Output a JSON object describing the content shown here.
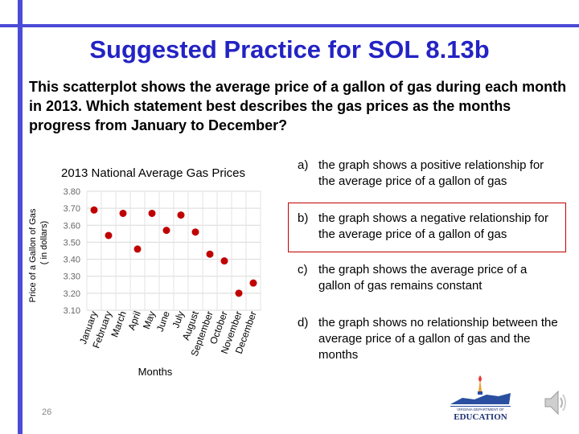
{
  "slide": {
    "title": "Suggested Practice for SOL 8.13b",
    "question": "This scatterplot shows the average price of a gallon of gas during each month in 2013.  Which statement best describes the gas prices as the months progress from January to December?",
    "page_number": "26",
    "logo_text": "VIRGINIA DEPARTMENT OF",
    "logo_title": "EDUCATION",
    "colors": {
      "accent": "#2323c4",
      "bar": "#4b4bd8",
      "marker": "#c00000",
      "highlight_border": "#c00000"
    }
  },
  "answers": [
    {
      "letter": "a)",
      "text": "the graph shows a positive relationship for the average price of a gallon of gas"
    },
    {
      "letter": "b)",
      "text": "the graph shows a negative relationship for the average price of a gallon of gas",
      "highlighted": true
    },
    {
      "letter": "c)",
      "text": "the graph shows the average price of a gallon of gas remains constant"
    },
    {
      "letter": "d)",
      "text": "the graph shows no relationship between the average  price of a gallon of gas and the months"
    }
  ],
  "chart_data": {
    "type": "scatter",
    "title": "2013 National Average Gas Prices",
    "xlabel": "Months",
    "ylabel": "Price of a Gallon of Gas ( in dollars)",
    "categories": [
      "January",
      "February",
      "March",
      "April",
      "May",
      "June",
      "July",
      "August",
      "September",
      "October",
      "November",
      "December"
    ],
    "values": [
      3.69,
      3.54,
      3.67,
      3.46,
      3.67,
      3.57,
      3.66,
      3.56,
      3.43,
      3.39,
      3.2,
      3.26
    ],
    "yticks": [
      "3.80",
      "3.70",
      "3.60",
      "3.50",
      "3.40",
      "3.30",
      "3.20",
      "3.10"
    ],
    "ylim": [
      3.1,
      3.8
    ],
    "grid": true,
    "marker_color": "#c00000"
  }
}
